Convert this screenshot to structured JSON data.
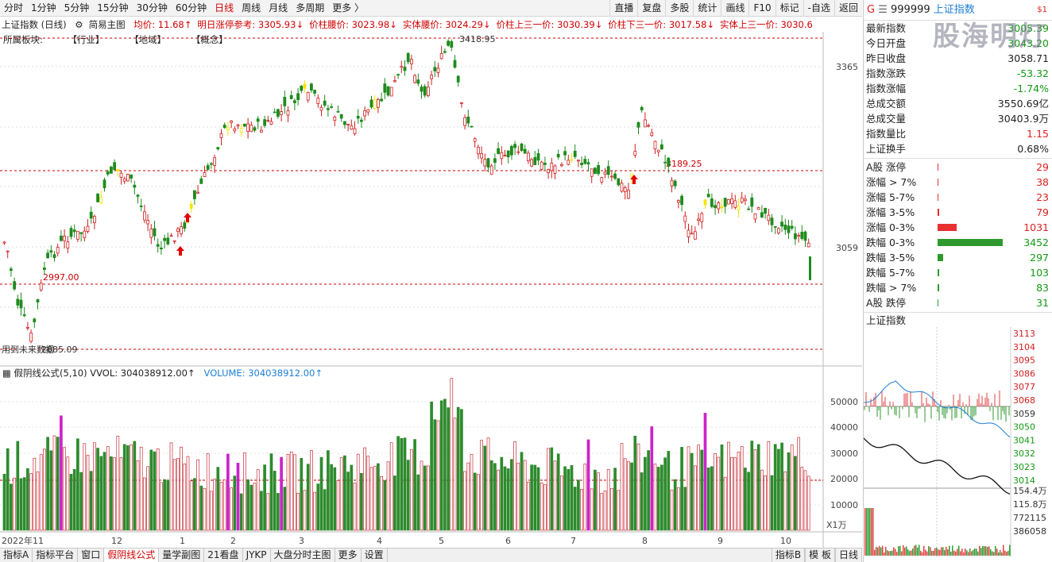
{
  "topbar": {
    "periods": [
      "分时",
      "1分钟",
      "5分钟",
      "15分钟",
      "30分钟",
      "60分钟",
      "日线",
      "周线",
      "月线",
      "多周期",
      "更多 〉"
    ],
    "active": "日线",
    "tools": [
      "直播",
      "复盘",
      "多股",
      "统计",
      "画线",
      "F10",
      "标记",
      "-自选",
      "返回"
    ]
  },
  "info": {
    "title": "上证指数 (日线)",
    "main_label": "简易主图",
    "items": [
      {
        "t": "均价: 11.68↑",
        "c": "#d00000"
      },
      {
        "t": "明日涨停参考: 3305.93↓",
        "c": "#d00000"
      },
      {
        "t": "价柱腰价: 3023.98↓",
        "c": "#d00000"
      },
      {
        "t": "实体腰价: 3024.29↓",
        "c": "#d00000"
      },
      {
        "t": "价柱上三一价: 3030.39↓",
        "c": "#d00000"
      },
      {
        "t": "价柱下三一价: 3017.58↓",
        "c": "#d00000"
      },
      {
        "t": "实体上三一价: 3030.6",
        "c": "#d00000"
      }
    ]
  },
  "sector": {
    "label": "所属板块:",
    "items": [
      "【行业】",
      "【地域】",
      "【概念】"
    ]
  },
  "price_chart": {
    "annotations": {
      "high": "3418.95",
      "low": "2885.09",
      "level_2997": "2997.00",
      "level_3189": "3189.25",
      "bottom_text": "用到未来数据"
    },
    "y_labels": [
      "3365",
      "3059"
    ],
    "x_labels": [
      "2022年11",
      "12",
      "1",
      "2",
      "3",
      "4",
      "5",
      "6",
      "7",
      "8",
      "9",
      "10"
    ]
  },
  "volume": {
    "label": "假阴线公式(5,10)",
    "vvol": "VVOL: 304038912.00↑",
    "volume": "VOLUME: 304038912.00↑",
    "y_labels": [
      "50000",
      "40000",
      "30000",
      "20000",
      "10000"
    ],
    "unit": "X1万"
  },
  "bottombar": {
    "tabs": [
      "指标A",
      "指标平台",
      "窗口",
      "假阴线公式",
      "量学副图",
      "21看盘",
      "JYKP",
      "大盘分时主图",
      "更多",
      "设置"
    ],
    "active": "假阴线公式",
    "right": [
      "指标B",
      "模 板",
      "日线"
    ]
  },
  "quote": {
    "flag": "G",
    "code": "999999",
    "name": "上证指数",
    "badge": "$1",
    "rows": [
      {
        "k": "最新指数",
        "v": "3005.39",
        "c": "grn"
      },
      {
        "k": "今日开盘",
        "v": "3043.20",
        "c": "grn"
      },
      {
        "k": "昨日收盘",
        "v": "3058.71",
        "c": ""
      },
      {
        "k": "指数涨跌",
        "v": "-53.32",
        "c": "grn"
      },
      {
        "k": "指数涨幅",
        "v": "-1.74%",
        "c": "grn"
      },
      {
        "k": "总成交额",
        "v": "3550.69亿",
        "c": ""
      },
      {
        "k": "总成交量",
        "v": "30403.9万",
        "c": ""
      },
      {
        "k": "指数量比",
        "v": "1.15",
        "c": "red"
      },
      {
        "k": "上证换手",
        "v": "0.68%",
        "c": ""
      }
    ]
  },
  "breadth": [
    {
      "k": "A股 涨停",
      "v": "29",
      "c": "red",
      "n": 29
    },
    {
      "k": "涨幅 > 7%",
      "v": "38",
      "c": "red",
      "n": 38
    },
    {
      "k": "涨幅 5-7%",
      "v": "23",
      "c": "red",
      "n": 23
    },
    {
      "k": "涨幅 3-5%",
      "v": "79",
      "c": "red",
      "n": 79
    },
    {
      "k": "涨幅 0-3%",
      "v": "1031",
      "c": "red",
      "n": 1031
    },
    {
      "k": "跌幅 0-3%",
      "v": "3452",
      "c": "grn",
      "n": 3452
    },
    {
      "k": "跌幅 3-5%",
      "v": "297",
      "c": "grn",
      "n": 297
    },
    {
      "k": "跌幅 5-7%",
      "v": "103",
      "c": "grn",
      "n": 103
    },
    {
      "k": "跌幅 > 7%",
      "v": "83",
      "c": "grn",
      "n": 83
    },
    {
      "k": "A股 跌停",
      "v": "31",
      "c": "grn",
      "n": 31
    }
  ],
  "intraday": {
    "title": "上证指数",
    "price_labels": [
      "3113",
      "3104",
      "3095",
      "3086",
      "3077",
      "3068",
      "3059",
      "3050",
      "3041",
      "3032",
      "3023",
      "3014"
    ],
    "vol_labels": [
      "154.4万",
      "115.8万",
      "772115",
      "386058"
    ]
  },
  "watermark": "股海明灯"
}
